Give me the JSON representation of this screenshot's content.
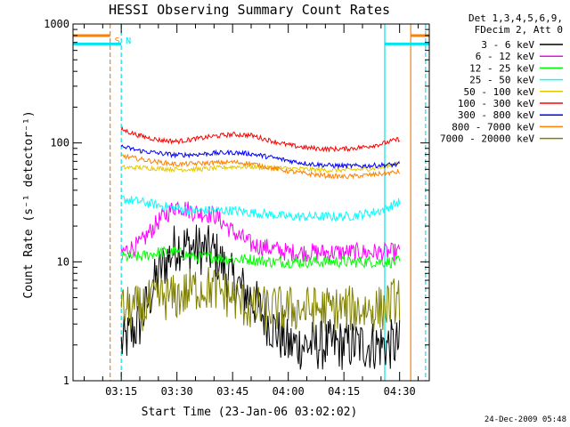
{
  "chart_data": {
    "type": "line",
    "title": "HESSI Observing Summary Count Rates",
    "xlabel": "Start Time (23-Jan-06 03:02:02)",
    "ylabel": "Count Rate (s⁻¹ detector⁻¹)",
    "y_scale": "log",
    "ylim": [
      1,
      1000
    ],
    "xlim": [
      "03:02",
      "04:38"
    ],
    "x_ticks": [
      "03:15",
      "03:30",
      "03:45",
      "04:00",
      "04:15",
      "04:30"
    ],
    "y_ticks": [
      "1",
      "10",
      "100",
      "1000"
    ],
    "legend_header": [
      "Det 1,3,4,5,6,9,",
      "FDecim 2, Att 0"
    ],
    "legend_position": "right, outside plot",
    "timestamp": "24-Dec-2009 05:48",
    "markers": [
      {
        "label": "S",
        "time": "03:12",
        "color": "#ff8000",
        "style": "dashed"
      },
      {
        "label": "N",
        "time": "03:15",
        "color": "#00e5ee",
        "style": "dashed"
      }
    ],
    "vertical_lines": [
      {
        "time": "03:12",
        "color": "#ff8000",
        "style": "dashed"
      },
      {
        "time": "03:15",
        "color": "#00e5ee",
        "style": "dashed"
      },
      {
        "time": "04:26",
        "color": "#00e5ee",
        "style": "solid"
      },
      {
        "time": "04:33",
        "color": "#ff8000",
        "style": "solid"
      },
      {
        "time": "04:37",
        "color": "#00e5ee",
        "style": "dashed"
      }
    ],
    "segments": [
      {
        "time_start": "03:02",
        "time_end": "03:12",
        "value": 800,
        "color": "#ff8000"
      },
      {
        "time_start": "03:02",
        "time_end": "03:15",
        "value": 680,
        "color": "#00e5ee"
      },
      {
        "time_start": "04:33",
        "time_end": "04:38",
        "value": 800,
        "color": "#ff8000"
      },
      {
        "time_start": "04:26",
        "time_end": "04:38",
        "value": 680,
        "color": "#00e5ee"
      }
    ],
    "x": [
      "03:15",
      "03:20",
      "03:25",
      "03:30",
      "03:35",
      "03:40",
      "03:45",
      "03:50",
      "03:55",
      "04:00",
      "04:05",
      "04:10",
      "04:15",
      "04:20",
      "04:25",
      "04:30"
    ],
    "series": [
      {
        "name": "3 - 6 keV",
        "color": "#000000",
        "noise": 0.22,
        "values": [
          2,
          3,
          8,
          14,
          13,
          12,
          7,
          5,
          3,
          2,
          2,
          2,
          2,
          2,
          2,
          2
        ]
      },
      {
        "name": "6 - 12 keV",
        "color": "#ff00ff",
        "noise": 0.08,
        "values": [
          12,
          14,
          22,
          30,
          26,
          25,
          18,
          14,
          13,
          12,
          12,
          12,
          12,
          12,
          12,
          12
        ]
      },
      {
        "name": "12 - 25 keV",
        "color": "#00ff00",
        "noise": 0.05,
        "values": [
          11,
          11,
          12,
          12,
          11,
          11,
          10.5,
          10.5,
          10,
          10,
          10,
          10,
          10,
          10,
          10,
          10
        ]
      },
      {
        "name": "25 - 50 keV",
        "color": "#00ffff",
        "noise": 0.04,
        "values": [
          34,
          32,
          30,
          28,
          27,
          27,
          27,
          26,
          25,
          24,
          24,
          24,
          24,
          25,
          27,
          32
        ]
      },
      {
        "name": "50 - 100 keV",
        "color": "#e6c800",
        "noise": 0.02,
        "values": [
          62,
          62,
          61,
          60,
          60,
          61,
          63,
          63,
          62,
          61,
          60,
          59,
          59,
          60,
          62,
          68
        ]
      },
      {
        "name": "100 - 300 keV",
        "color": "#ff0000",
        "noise": 0.02,
        "values": [
          130,
          115,
          106,
          103,
          108,
          114,
          118,
          116,
          105,
          96,
          91,
          89,
          89,
          92,
          98,
          108
        ]
      },
      {
        "name": "300 - 800 keV",
        "color": "#0000ff",
        "noise": 0.02,
        "values": [
          93,
          86,
          82,
          79,
          80,
          82,
          83,
          81,
          76,
          71,
          67,
          65,
          64,
          64,
          65,
          66
        ]
      },
      {
        "name": "800 - 7000 keV",
        "color": "#ff8000",
        "noise": 0.02,
        "values": [
          78,
          73,
          69,
          66,
          67,
          68,
          69,
          67,
          62,
          58,
          55,
          53,
          52,
          53,
          55,
          57
        ]
      },
      {
        "name": "7000 - 20000 keV",
        "color": "#808000",
        "noise": 0.2,
        "values": [
          4,
          4,
          5,
          5,
          6,
          6,
          5,
          4,
          4,
          4,
          4,
          4,
          4,
          4,
          4,
          5
        ]
      }
    ]
  }
}
